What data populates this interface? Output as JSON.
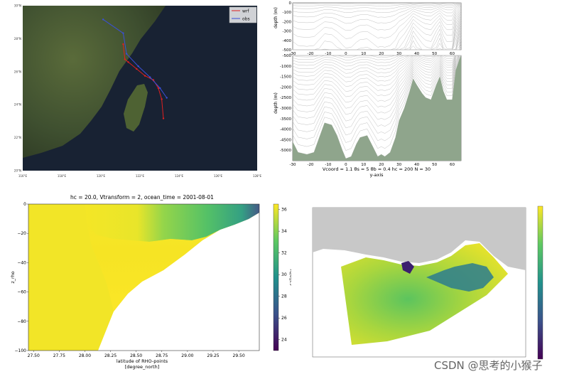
{
  "watermark": "CSDN @思考的小猴子",
  "chart_data": [
    {
      "type": "line",
      "panel": "track-map",
      "background": "satellite map",
      "legend": [
        "wrf",
        "obs"
      ],
      "legend_placement": "top-right",
      "colors": {
        "wrf": "#e02020",
        "obs": "#3a4fd8"
      },
      "x_ticks": [
        "116°E",
        "118°E",
        "120°E",
        "122°E",
        "124°E",
        "126°E",
        "128°E"
      ],
      "y_ticks": [
        "20°N",
        "22°N",
        "24°N",
        "26°N",
        "28°N",
        "30°N"
      ],
      "series": [
        {
          "name": "wrf",
          "x": [
            121.0,
            121.1,
            121.3,
            121.8,
            122.3,
            122.8,
            123.1,
            123.3,
            123.4
          ],
          "y": [
            28.2,
            27.1,
            26.9,
            26.4,
            25.9,
            25.6,
            25.0,
            24.2,
            22.8
          ]
        },
        {
          "name": "obs",
          "x": [
            119.8,
            121.0,
            121.2,
            121.9,
            122.6,
            123.2,
            123.6
          ],
          "y": [
            30.0,
            29.0,
            27.5,
            26.6,
            25.8,
            25.0,
            24.3
          ]
        }
      ]
    },
    {
      "type": "line",
      "panel": "vertical-grid",
      "subplots": 2,
      "x_ticks": [
        "-30",
        "-20",
        "-10",
        "0",
        "10",
        "20",
        "30",
        "40",
        "50",
        "60"
      ],
      "y_ticks_top": [
        "0",
        "-100",
        "-200",
        "-300",
        "-400",
        "-500"
      ],
      "y_ticks_bottom": [
        "-500",
        "-1000",
        "-1500",
        "-2000",
        "-2500",
        "-3000",
        "-3500",
        "-4000",
        "-4500",
        "-5000"
      ],
      "ylabel": "depth (m)",
      "xlabel": "y-axis",
      "caption": "Vcoord = 1.1   θs = 5   θb = 0.4   hc = 200   N = 30",
      "colors": {
        "lines": "#c0c0c0",
        "bathymetry": "#8fa58c"
      },
      "bathymetry": {
        "x": [
          -30,
          -27,
          -22,
          -18,
          -15,
          -12,
          -8,
          -5,
          -2,
          0,
          3,
          6,
          8,
          12,
          15,
          18,
          20,
          22,
          25,
          28,
          30,
          33,
          36,
          38,
          40,
          43,
          45,
          48,
          51,
          53,
          55,
          57,
          60,
          62,
          64,
          65
        ],
        "depth": [
          -4600,
          -5100,
          -5200,
          -5100,
          -4400,
          -3700,
          -3800,
          -4300,
          -5000,
          -5400,
          -5300,
          -4700,
          -4400,
          -4300,
          -4800,
          -5300,
          -5200,
          -5300,
          -5100,
          -4400,
          -3600,
          -3000,
          -2200,
          -1600,
          -1900,
          -2300,
          -2500,
          -2600,
          -1900,
          -1500,
          -2200,
          -2600,
          -2600,
          -1200,
          -700,
          -500
        ]
      }
    },
    {
      "type": "heatmap",
      "panel": "salinity-section",
      "title": "hc = 20.0, Vtransform = 2, ocean_time = 2001-08-01",
      "xlabel": "latitude of RHO-points\n[degree_north]",
      "ylabel": "z_rho",
      "x_ticks": [
        "27.50",
        "27.75",
        "28.00",
        "28.25",
        "28.50",
        "28.75",
        "29.00",
        "29.25",
        "29.50"
      ],
      "y_ticks": [
        "0",
        "−20",
        "−40",
        "−60",
        "−80",
        "−100"
      ],
      "colorbar": {
        "label": "salinity",
        "ticks": [
          "24",
          "26",
          "28",
          "30",
          "32",
          "34",
          "36"
        ],
        "range": [
          23,
          36.5
        ]
      },
      "colormap": [
        "#440154",
        "#3b528b",
        "#21918c",
        "#5ec962",
        "#fde725"
      ]
    },
    {
      "type": "heatmap",
      "panel": "surface-map",
      "title": "",
      "colormap": [
        "#440154",
        "#3b528b",
        "#21918c",
        "#5ec962",
        "#fde725"
      ],
      "land_color": "#c8c8c8"
    }
  ]
}
